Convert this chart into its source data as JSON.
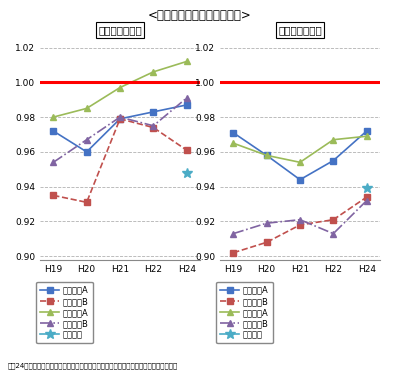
{
  "title": "<正答率の全国平均との比較>",
  "footer": "平成24年度全国学力・学習状況調査　学力調査結果概要（大阪府教育委員会作成）より",
  "x_labels": [
    "H19",
    "H20",
    "H21",
    "H22",
    "H24"
  ],
  "ylim": [
    0.898,
    1.026
  ],
  "yticks": [
    0.9,
    0.92,
    0.94,
    0.96,
    0.98,
    1.0,
    1.02
  ],
  "hline": 1.0,
  "left_title": "【公立小学校】",
  "right_title": "【公立中学校】",
  "left_series": [
    {
      "name": "小・国語A",
      "values": [
        0.972,
        0.96,
        0.979,
        0.983,
        0.987
      ],
      "color": "#4472C4",
      "linestyle": "-",
      "marker": "s"
    },
    {
      "name": "小・国語B",
      "values": [
        0.935,
        0.931,
        0.979,
        0.974,
        0.961
      ],
      "color": "#C0504D",
      "linestyle": "--",
      "marker": "s"
    },
    {
      "name": "小・算数A",
      "values": [
        0.98,
        0.985,
        0.997,
        1.006,
        1.012
      ],
      "color": "#9BBB59",
      "linestyle": "-",
      "marker": "^"
    },
    {
      "name": "小・算数B",
      "values": [
        0.954,
        0.967,
        0.98,
        0.975,
        0.991
      ],
      "color": "#8064A2",
      "linestyle": "-.",
      "marker": "^"
    },
    {
      "name": "小・理科",
      "values": [
        null,
        null,
        null,
        null,
        0.948
      ],
      "color": "#4BACC6",
      "linestyle": "-",
      "marker": "*"
    }
  ],
  "right_series": [
    {
      "name": "中・国語A",
      "values": [
        0.971,
        0.958,
        0.944,
        0.955,
        0.972
      ],
      "color": "#4472C4",
      "linestyle": "-",
      "marker": "s"
    },
    {
      "name": "中・国語B",
      "values": [
        0.902,
        0.908,
        0.918,
        0.921,
        0.934
      ],
      "color": "#C0504D",
      "linestyle": "--",
      "marker": "s"
    },
    {
      "name": "中・数学A",
      "values": [
        0.965,
        0.958,
        0.954,
        0.967,
        0.969
      ],
      "color": "#9BBB59",
      "linestyle": "-",
      "marker": "^"
    },
    {
      "name": "中・数学B",
      "values": [
        0.913,
        0.919,
        0.921,
        0.913,
        0.932
      ],
      "color": "#8064A2",
      "linestyle": "-.",
      "marker": "^"
    },
    {
      "name": "中・理科",
      "values": [
        null,
        null,
        null,
        null,
        0.939
      ],
      "color": "#4BACC6",
      "linestyle": "-",
      "marker": "*"
    }
  ]
}
